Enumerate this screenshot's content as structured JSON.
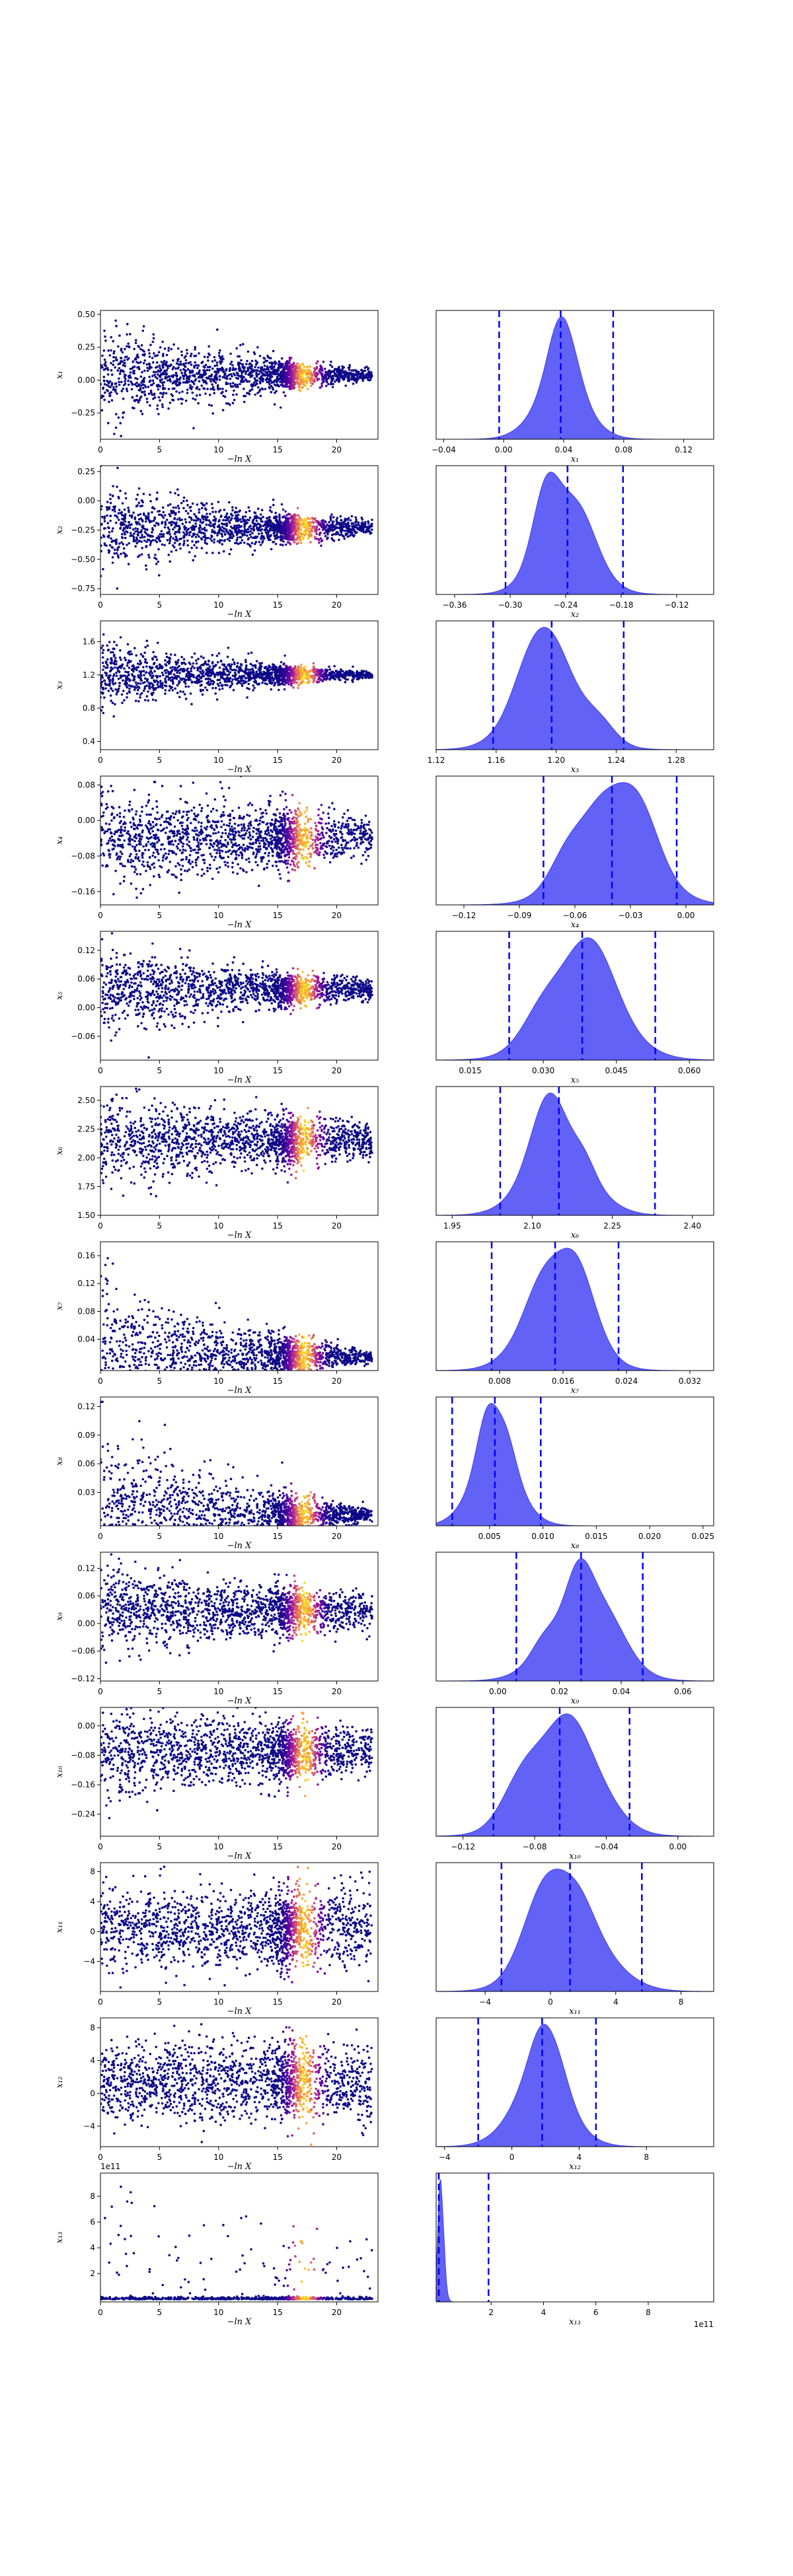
{
  "figure": {
    "title": "",
    "scatter_xlabel": "−ln X",
    "colormap": [
      "#0d0887",
      "#5b02a3",
      "#9a179b",
      "#cb4678",
      "#eb7852",
      "#fbb32f",
      "#f0f921"
    ],
    "kde_fill": "#3b3bf5",
    "quantile_line": "#0000ff"
  },
  "chart_data": [
    {
      "type": "scatter",
      "ylabel": "x₁",
      "xlabel": "−ln X",
      "xlim": [
        0,
        23.5
      ],
      "ylim": [
        -0.45,
        0.53
      ],
      "xticks": [
        0,
        5,
        10,
        15,
        20
      ],
      "yticks": [
        -0.25,
        0.0,
        0.25,
        0.5
      ],
      "ytick_labels": [
        "−0.25",
        "0.00",
        "0.25",
        "0.50"
      ],
      "center": 0.04,
      "spread_start": 0.2,
      "spread_end": 0.02,
      "offset_text": ""
    },
    {
      "type": "area",
      "xlabel": "x₁",
      "xlim": [
        -0.045,
        0.14
      ],
      "xticks": [
        -0.04,
        0.0,
        0.04,
        0.08,
        0.12
      ],
      "xtick_labels": [
        "−0.04",
        "0.00",
        "0.04",
        "0.08",
        "0.12"
      ],
      "mean": 0.038,
      "std": 0.017,
      "quantiles": [
        -0.003,
        0.038,
        0.073
      ]
    },
    {
      "type": "scatter",
      "ylabel": "x₂",
      "xlabel": "−ln X",
      "xlim": [
        0,
        23.5
      ],
      "ylim": [
        -0.8,
        0.3
      ],
      "xticks": [
        0,
        5,
        10,
        15,
        20
      ],
      "yticks": [
        -0.75,
        -0.5,
        -0.25,
        0.0,
        0.25
      ],
      "ytick_labels": [
        "−0.75",
        "−0.50",
        "−0.25",
        "0.00",
        "0.25"
      ],
      "center": -0.23,
      "spread_start": 0.2,
      "spread_end": 0.03,
      "offset_text": ""
    },
    {
      "type": "area",
      "xlabel": "x₂",
      "xlim": [
        -0.38,
        -0.08
      ],
      "xticks": [
        -0.36,
        -0.3,
        -0.24,
        -0.18,
        -0.12
      ],
      "xtick_labels": [
        "−0.36",
        "−0.30",
        "−0.24",
        "−0.18",
        "−0.12"
      ],
      "mean": -0.24,
      "std": 0.03,
      "quantiles": [
        -0.305,
        -0.238,
        -0.178
      ]
    },
    {
      "type": "scatter",
      "ylabel": "x₃",
      "xlabel": "−ln X",
      "xlim": [
        0,
        23.5
      ],
      "ylim": [
        0.3,
        1.85
      ],
      "xticks": [
        0,
        5,
        10,
        15,
        20
      ],
      "yticks": [
        0.4,
        0.8,
        1.2,
        1.6
      ],
      "ytick_labels": [
        "0.4",
        "0.8",
        "1.2",
        "1.6"
      ],
      "center": 1.2,
      "spread_start": 0.22,
      "spread_end": 0.02,
      "offset_text": ""
    },
    {
      "type": "area",
      "xlabel": "x₃",
      "xlim": [
        1.12,
        1.305
      ],
      "xticks": [
        1.12,
        1.16,
        1.2,
        1.24,
        1.28
      ],
      "xtick_labels": [
        "1.12",
        "1.16",
        "1.20",
        "1.24",
        "1.28"
      ],
      "mean": 1.196,
      "std": 0.022,
      "quantiles": [
        1.158,
        1.197,
        1.245
      ]
    },
    {
      "type": "scatter",
      "ylabel": "x₄",
      "xlabel": "−ln X",
      "xlim": [
        0,
        23.5
      ],
      "ylim": [
        -0.19,
        0.1
      ],
      "xticks": [
        0,
        5,
        10,
        15,
        20
      ],
      "yticks": [
        -0.16,
        -0.08,
        0.0,
        0.08
      ],
      "ytick_labels": [
        "−0.16",
        "−0.08",
        "0.00",
        "0.08"
      ],
      "center": -0.04,
      "spread_start": 0.06,
      "spread_end": 0.025,
      "offset_text": ""
    },
    {
      "type": "area",
      "xlabel": "x₄",
      "xlim": [
        -0.135,
        0.015
      ],
      "xticks": [
        -0.12,
        -0.09,
        -0.06,
        -0.03,
        0.0
      ],
      "xtick_labels": [
        "−0.12",
        "−0.09",
        "−0.06",
        "−0.03",
        "0.00"
      ],
      "mean": -0.04,
      "std": 0.021,
      "quantiles": [
        -0.077,
        -0.04,
        -0.005
      ]
    },
    {
      "type": "scatter",
      "ylabel": "x₅",
      "xlabel": "−ln X",
      "xlim": [
        0,
        23.5
      ],
      "ylim": [
        -0.11,
        0.16
      ],
      "xticks": [
        0,
        5,
        10,
        15,
        20
      ],
      "yticks": [
        -0.06,
        0.0,
        0.06,
        0.12
      ],
      "ytick_labels": [
        "−0.06",
        "0.00",
        "0.06",
        "0.12"
      ],
      "center": 0.038,
      "spread_start": 0.05,
      "spread_end": 0.01,
      "offset_text": ""
    },
    {
      "type": "area",
      "xlabel": "x₅",
      "xlim": [
        0.008,
        0.065
      ],
      "xticks": [
        0.015,
        0.03,
        0.045,
        0.06
      ],
      "xtick_labels": [
        "0.015",
        "0.030",
        "0.045",
        "0.060"
      ],
      "mean": 0.038,
      "std": 0.008,
      "quantiles": [
        0.023,
        0.038,
        0.053
      ]
    },
    {
      "type": "scatter",
      "ylabel": "x₆",
      "xlabel": "−ln X",
      "xlim": [
        0,
        23.5
      ],
      "ylim": [
        1.5,
        2.62
      ],
      "xticks": [
        0,
        5,
        10,
        15,
        20
      ],
      "yticks": [
        1.5,
        1.75,
        2.0,
        2.25,
        2.5
      ],
      "ytick_labels": [
        "1.50",
        "1.75",
        "2.00",
        "2.25",
        "2.50"
      ],
      "center": 2.15,
      "spread_start": 0.22,
      "spread_end": 0.08,
      "offset_text": ""
    },
    {
      "type": "area",
      "xlabel": "x₆",
      "xlim": [
        1.92,
        2.44
      ],
      "xticks": [
        1.95,
        2.1,
        2.25,
        2.4
      ],
      "xtick_labels": [
        "1.95",
        "2.10",
        "2.25",
        "2.40"
      ],
      "mean": 2.15,
      "std": 0.06,
      "quantiles": [
        2.04,
        2.15,
        2.33
      ]
    },
    {
      "type": "scatter",
      "ylabel": "x₇",
      "xlabel": "−ln X",
      "xlim": [
        0,
        23.5
      ],
      "ylim": [
        -0.005,
        0.18
      ],
      "xticks": [
        0,
        5,
        10,
        15,
        20
      ],
      "yticks": [
        0.04,
        0.08,
        0.12,
        0.16
      ],
      "ytick_labels": [
        "0.04",
        "0.08",
        "0.12",
        "0.16"
      ],
      "center": 0.015,
      "spread_start": 0.06,
      "spread_end": 0.004,
      "offset_text": ""
    },
    {
      "type": "area",
      "xlabel": "x₇",
      "xlim": [
        0.0,
        0.035
      ],
      "xticks": [
        0.008,
        0.016,
        0.024,
        0.032
      ],
      "xtick_labels": [
        "0.008",
        "0.016",
        "0.024",
        "0.032"
      ],
      "mean": 0.015,
      "std": 0.004,
      "quantiles": [
        0.007,
        0.015,
        0.023
      ]
    },
    {
      "type": "scatter",
      "ylabel": "x₈",
      "xlabel": "−ln X",
      "xlim": [
        0,
        23.5
      ],
      "ylim": [
        -0.005,
        0.13
      ],
      "xticks": [
        0,
        5,
        10,
        15,
        20
      ],
      "yticks": [
        0.03,
        0.06,
        0.09,
        0.12
      ],
      "ytick_labels": [
        "0.03",
        "0.06",
        "0.09",
        "0.12"
      ],
      "center": 0.006,
      "spread_start": 0.05,
      "spread_end": 0.003,
      "offset_text": ""
    },
    {
      "type": "area",
      "xlabel": "x₈",
      "xlim": [
        0.0,
        0.026
      ],
      "xticks": [
        0.005,
        0.01,
        0.015,
        0.02,
        0.025
      ],
      "xtick_labels": [
        "0.005",
        "0.010",
        "0.015",
        "0.020",
        "0.025"
      ],
      "mean": 0.0055,
      "std": 0.0022,
      "quantiles": [
        0.0015,
        0.0055,
        0.0098
      ]
    },
    {
      "type": "scatter",
      "ylabel": "x₉",
      "xlabel": "−ln X",
      "xlim": [
        0,
        23.5
      ],
      "ylim": [
        -0.125,
        0.155
      ],
      "xticks": [
        0,
        5,
        10,
        15,
        20
      ],
      "yticks": [
        -0.12,
        -0.06,
        0.0,
        0.06,
        0.12
      ],
      "ytick_labels": [
        "−0.12",
        "−0.06",
        "0.00",
        "0.06",
        "0.12"
      ],
      "center": 0.027,
      "spread_start": 0.05,
      "spread_end": 0.02,
      "offset_text": ""
    },
    {
      "type": "area",
      "xlabel": "x₉",
      "xlim": [
        -0.02,
        0.07
      ],
      "xticks": [
        0.0,
        0.02,
        0.04,
        0.06
      ],
      "xtick_labels": [
        "0.00",
        "0.02",
        "0.04",
        "0.06"
      ],
      "mean": 0.027,
      "std": 0.011,
      "quantiles": [
        0.006,
        0.027,
        0.047
      ]
    },
    {
      "type": "scatter",
      "ylabel": "x₁₀",
      "xlabel": "−ln X",
      "xlim": [
        0,
        23.5
      ],
      "ylim": [
        -0.3,
        0.05
      ],
      "xticks": [
        0,
        5,
        10,
        15,
        20
      ],
      "yticks": [
        -0.24,
        -0.16,
        -0.08,
        0.0
      ],
      "ytick_labels": [
        "−0.24",
        "−0.16",
        "−0.08",
        "0.00"
      ],
      "center": -0.07,
      "spread_start": 0.07,
      "spread_end": 0.03,
      "offset_text": ""
    },
    {
      "type": "area",
      "xlabel": "x₁₀",
      "xlim": [
        -0.135,
        0.02
      ],
      "xticks": [
        -0.12,
        -0.08,
        -0.04,
        0.0
      ],
      "xtick_labels": [
        "−0.12",
        "−0.08",
        "−0.04",
        "0.00"
      ],
      "mean": -0.065,
      "std": 0.02,
      "quantiles": [
        -0.103,
        -0.066,
        -0.027
      ]
    },
    {
      "type": "scatter",
      "ylabel": "x₁₁",
      "xlabel": "−ln X",
      "xlim": [
        0,
        23.5
      ],
      "ylim": [
        -8,
        9.2
      ],
      "xticks": [
        0,
        5,
        10,
        15,
        20
      ],
      "yticks": [
        -4,
        0,
        4,
        8
      ],
      "ytick_labels": [
        "−4",
        "0",
        "4",
        "8"
      ],
      "center": 0.5,
      "spread_start": 2.6,
      "spread_end": 2.6,
      "offset_text": ""
    },
    {
      "type": "area",
      "xlabel": "x₁₁",
      "xlim": [
        -7,
        10
      ],
      "xticks": [
        -4,
        0,
        4,
        8
      ],
      "xtick_labels": [
        "−4",
        "0",
        "4",
        "8"
      ],
      "mean": 1.3,
      "std": 2.2,
      "quantiles": [
        -3.0,
        1.2,
        5.6
      ]
    },
    {
      "type": "scatter",
      "ylabel": "x₁₂",
      "xlabel": "−ln X",
      "xlim": [
        0,
        23.5
      ],
      "ylim": [
        -6.5,
        9.2
      ],
      "xticks": [
        0,
        5,
        10,
        15,
        20
      ],
      "yticks": [
        -4,
        0,
        4,
        8
      ],
      "ytick_labels": [
        "−4",
        "0",
        "4",
        "8"
      ],
      "center": 1.5,
      "spread_start": 2.4,
      "spread_end": 2.4,
      "offset_text": ""
    },
    {
      "type": "area",
      "xlabel": "x₁₂",
      "xlim": [
        -4.5,
        12
      ],
      "xticks": [
        -4,
        0,
        4,
        8
      ],
      "xtick_labels": [
        "−4",
        "0",
        "4",
        "8"
      ],
      "mean": 1.7,
      "std": 1.7,
      "quantiles": [
        -2.0,
        1.8,
        5.0
      ]
    },
    {
      "type": "scatter",
      "ylabel": "x₁₃",
      "xlabel": "−ln X",
      "xlim": [
        0,
        23.5
      ],
      "ylim": [
        -0.2,
        9.8
      ],
      "xticks": [
        0,
        5,
        10,
        15,
        20
      ],
      "yticks": [
        2,
        4,
        6,
        8
      ],
      "ytick_labels": [
        "2",
        "4",
        "6",
        "8"
      ],
      "center": 0.1,
      "spread_start": 2.5,
      "spread_end": 0.5,
      "offset_text": "1e11"
    },
    {
      "type": "area",
      "xlabel": "x₁₃",
      "xlim": [
        -0.1,
        10.5
      ],
      "xticks": [
        2,
        4,
        6,
        8
      ],
      "xtick_labels": [
        "2",
        "4",
        "6",
        "8"
      ],
      "mean": 0.1,
      "std": 0.12,
      "quantiles": [
        0.0,
        0.0,
        1.9
      ],
      "offset_text": "1e11"
    }
  ]
}
